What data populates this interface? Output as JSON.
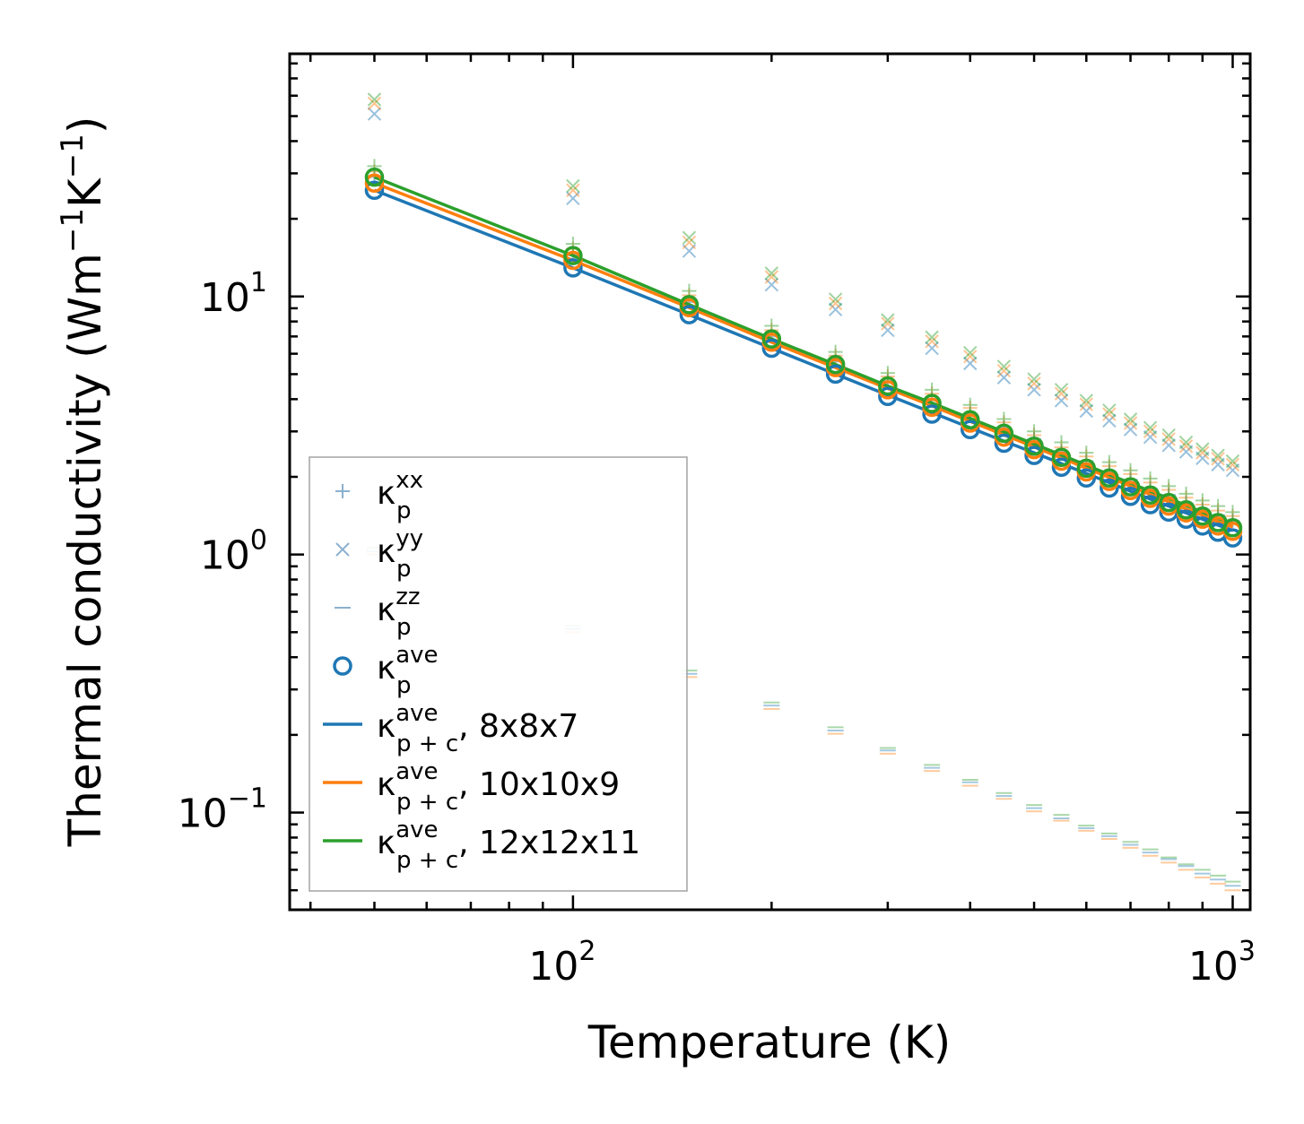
{
  "chart_data": {
    "type": "scatter",
    "xlabel": "Temperature (K)",
    "ylabel": "Thermal conductivity (Wm",
    "ylabel_sup1": "−1",
    "ylabel_mid": "K",
    "ylabel_sup2": "−1",
    "ylabel_end": ")",
    "xscale": "log",
    "yscale": "log",
    "xlim": [
      37.2,
      1063
    ],
    "ylim": [
      0.042,
      87.2
    ],
    "xticks": [
      {
        "value": 100,
        "base": "10",
        "exp": "2"
      },
      {
        "value": 1000,
        "base": "10",
        "exp": "3"
      }
    ],
    "yticks": [
      {
        "value": 0.1,
        "base": "10",
        "exp": "−1"
      },
      {
        "value": 1,
        "base": "10",
        "exp": "0"
      },
      {
        "value": 10,
        "base": "10",
        "exp": "1"
      }
    ],
    "x": [
      50,
      100,
      150,
      200,
      250,
      300,
      350,
      400,
      450,
      500,
      550,
      600,
      650,
      700,
      750,
      800,
      850,
      900,
      950,
      1000
    ],
    "colors": {
      "blue": "#1f77b4",
      "orange": "#ff7f0e",
      "green": "#2ca02c"
    },
    "series": [
      {
        "name": "kp_xx",
        "marker": "plus",
        "variant": "8x8x7",
        "values": [
          29.0,
          14.5,
          9.5,
          7.0,
          5.6,
          4.7,
          4.0,
          3.5,
          3.1,
          2.8,
          2.5,
          2.3,
          2.1,
          1.95,
          1.8,
          1.7,
          1.58,
          1.49,
          1.42,
          1.35
        ]
      },
      {
        "name": "kp_xx",
        "marker": "plus",
        "variant": "10x10x9",
        "values": [
          30.5,
          15.3,
          10.1,
          7.4,
          5.9,
          4.9,
          4.2,
          3.7,
          3.25,
          2.9,
          2.6,
          2.4,
          2.2,
          2.05,
          1.9,
          1.78,
          1.66,
          1.56,
          1.48,
          1.41
        ]
      },
      {
        "name": "kp_xx",
        "marker": "plus",
        "variant": "12x12x11",
        "values": [
          32.0,
          16.0,
          10.5,
          7.7,
          6.1,
          5.05,
          4.35,
          3.8,
          3.35,
          3.0,
          2.72,
          2.48,
          2.28,
          2.12,
          1.97,
          1.84,
          1.72,
          1.62,
          1.54,
          1.46
        ]
      },
      {
        "name": "kp_yy",
        "marker": "x",
        "variant": "8x8x7",
        "values": [
          51.0,
          24.0,
          15.0,
          11.1,
          8.9,
          7.4,
          6.3,
          5.5,
          4.85,
          4.35,
          3.95,
          3.6,
          3.3,
          3.05,
          2.85,
          2.65,
          2.5,
          2.36,
          2.23,
          2.12
        ]
      },
      {
        "name": "kp_yy",
        "marker": "x",
        "variant": "10x10x9",
        "values": [
          56.0,
          25.8,
          16.2,
          11.9,
          9.4,
          7.85,
          6.7,
          5.85,
          5.15,
          4.6,
          4.2,
          3.82,
          3.5,
          3.23,
          3.0,
          2.8,
          2.63,
          2.48,
          2.35,
          2.23
        ]
      },
      {
        "name": "kp_yy",
        "marker": "x",
        "variant": "12x12x11",
        "values": [
          58.0,
          26.8,
          16.9,
          12.3,
          9.75,
          8.1,
          6.95,
          6.05,
          5.35,
          4.78,
          4.35,
          3.95,
          3.62,
          3.34,
          3.1,
          2.9,
          2.72,
          2.56,
          2.42,
          2.3
        ]
      },
      {
        "name": "kp_zz",
        "marker": "dash",
        "variant": "8x8x7",
        "values": [
          1.03,
          0.515,
          0.345,
          0.26,
          0.208,
          0.174,
          0.149,
          0.131,
          0.116,
          0.104,
          0.095,
          0.087,
          0.081,
          0.075,
          0.07,
          0.066,
          0.062,
          0.058,
          0.055,
          0.052
        ]
      },
      {
        "name": "kp_zz",
        "marker": "dash",
        "variant": "10x10x9",
        "values": [
          1.0,
          0.5,
          0.335,
          0.252,
          0.202,
          0.169,
          0.145,
          0.127,
          0.113,
          0.101,
          0.093,
          0.085,
          0.079,
          0.073,
          0.068,
          0.064,
          0.06,
          0.056,
          0.053,
          0.05
        ]
      },
      {
        "name": "kp_zz",
        "marker": "dash",
        "variant": "12x12x11",
        "values": [
          1.06,
          0.53,
          0.355,
          0.267,
          0.214,
          0.178,
          0.153,
          0.134,
          0.119,
          0.107,
          0.098,
          0.089,
          0.083,
          0.077,
          0.072,
          0.067,
          0.063,
          0.06,
          0.057,
          0.054
        ]
      },
      {
        "name": "kp_ave",
        "marker": "circle",
        "variant": "8x8x7",
        "values": [
          25.8,
          12.9,
          8.5,
          6.3,
          5.0,
          4.1,
          3.5,
          3.05,
          2.7,
          2.42,
          2.18,
          1.98,
          1.81,
          1.68,
          1.56,
          1.46,
          1.37,
          1.29,
          1.22,
          1.16
        ]
      },
      {
        "name": "kp_ave",
        "marker": "circle",
        "variant": "10x10x9",
        "values": [
          27.5,
          13.8,
          9.05,
          6.65,
          5.3,
          4.35,
          3.72,
          3.23,
          2.85,
          2.55,
          2.3,
          2.09,
          1.92,
          1.77,
          1.65,
          1.54,
          1.45,
          1.37,
          1.29,
          1.23
        ]
      },
      {
        "name": "kp_ave",
        "marker": "circle",
        "variant": "12x12x11",
        "values": [
          29.0,
          14.4,
          9.3,
          6.85,
          5.45,
          4.5,
          3.85,
          3.33,
          2.95,
          2.63,
          2.38,
          2.16,
          1.98,
          1.83,
          1.7,
          1.59,
          1.49,
          1.41,
          1.33,
          1.27
        ]
      },
      {
        "name": "kpc_ave_8x8x7",
        "marker": "line",
        "color": "#1f77b4",
        "values": [
          25.8,
          12.9,
          8.5,
          6.3,
          5.0,
          4.15,
          3.55,
          3.1,
          2.75,
          2.48,
          2.25,
          2.06,
          1.9,
          1.76,
          1.64,
          1.54,
          1.45,
          1.37,
          1.3,
          1.24
        ]
      },
      {
        "name": "kpc_ave_10x10x9",
        "marker": "line",
        "color": "#ff7f0e",
        "values": [
          27.5,
          13.8,
          9.05,
          6.65,
          5.3,
          4.4,
          3.77,
          3.28,
          2.91,
          2.61,
          2.37,
          2.16,
          1.99,
          1.84,
          1.71,
          1.6,
          1.5,
          1.42,
          1.34,
          1.28
        ]
      },
      {
        "name": "kpc_ave_12x12x11",
        "marker": "line",
        "color": "#2ca02c",
        "values": [
          29.0,
          14.4,
          9.3,
          6.85,
          5.45,
          4.5,
          3.87,
          3.37,
          2.99,
          2.68,
          2.43,
          2.22,
          2.04,
          1.89,
          1.76,
          1.65,
          1.55,
          1.46,
          1.38,
          1.32
        ]
      }
    ],
    "legend": {
      "position": "lower-left",
      "entries": [
        {
          "symbol": "plus",
          "color": "#7fa8c9",
          "base": "κ",
          "sup": "xx",
          "sub": "p",
          "suffix": ""
        },
        {
          "symbol": "x",
          "color": "#7fa8c9",
          "base": "κ",
          "sup": "yy",
          "sub": "p",
          "suffix": ""
        },
        {
          "symbol": "dash",
          "color": "#7fa8c9",
          "base": "κ",
          "sup": "zz",
          "sub": "p",
          "suffix": ""
        },
        {
          "symbol": "circle",
          "color": "#1f77b4",
          "base": "κ",
          "sup": "ave",
          "sub": "p",
          "suffix": ""
        },
        {
          "symbol": "line",
          "color": "#1f77b4",
          "base": "κ",
          "sup": "ave",
          "sub": "p + c",
          "suffix": ", 8x8x7"
        },
        {
          "symbol": "line",
          "color": "#ff7f0e",
          "base": "κ",
          "sup": "ave",
          "sub": "p + c",
          "suffix": ", 10x10x9"
        },
        {
          "symbol": "line",
          "color": "#2ca02c",
          "base": "κ",
          "sup": "ave",
          "sub": "p + c",
          "suffix": ", 12x12x11"
        }
      ]
    }
  }
}
